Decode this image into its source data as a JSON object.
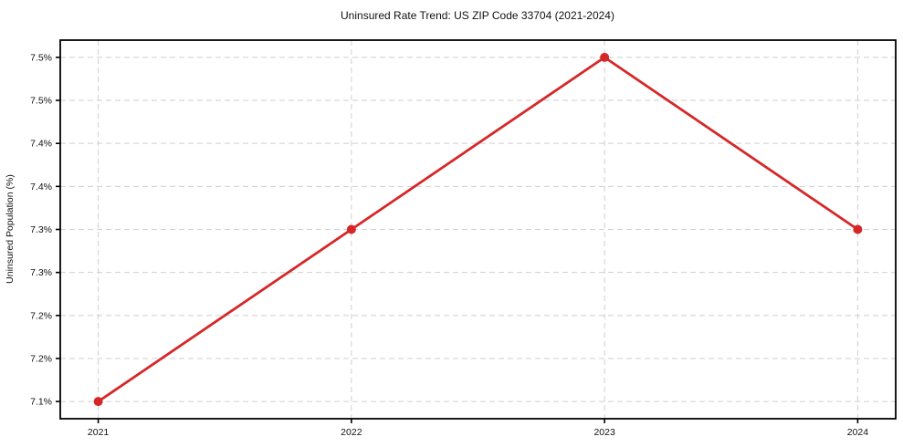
{
  "chart_data": {
    "type": "line",
    "title": "Uninsured Rate Trend: US ZIP Code 33704 (2021-2024)",
    "xlabel": "",
    "ylabel": "Uninsured Population (%)",
    "x": [
      2021,
      2022,
      2023,
      2024
    ],
    "x_tick_labels": [
      "2021",
      "2022",
      "2023",
      "2024"
    ],
    "series": [
      {
        "name": "Uninsured Rate",
        "values": [
          7.1,
          7.3,
          7.5,
          7.3
        ]
      }
    ],
    "y_ticks": [
      7.1,
      7.15,
      7.2,
      7.25,
      7.3,
      7.35,
      7.4,
      7.45,
      7.5
    ],
    "y_tick_labels": [
      "7.1%",
      "7.2%",
      "7.2%",
      "7.3%",
      "7.3%",
      "7.4%",
      "7.4%",
      "7.5%",
      "7.5%"
    ],
    "xlim": [
      2020.85,
      2024.15
    ],
    "ylim": [
      7.08,
      7.52
    ],
    "grid": true,
    "legend": false,
    "colors": {
      "line": "#d62728",
      "marker": "#d62728",
      "grid": "#cfcfcf",
      "axis": "#000000",
      "text": "#111111",
      "background": "#ffffff"
    }
  }
}
